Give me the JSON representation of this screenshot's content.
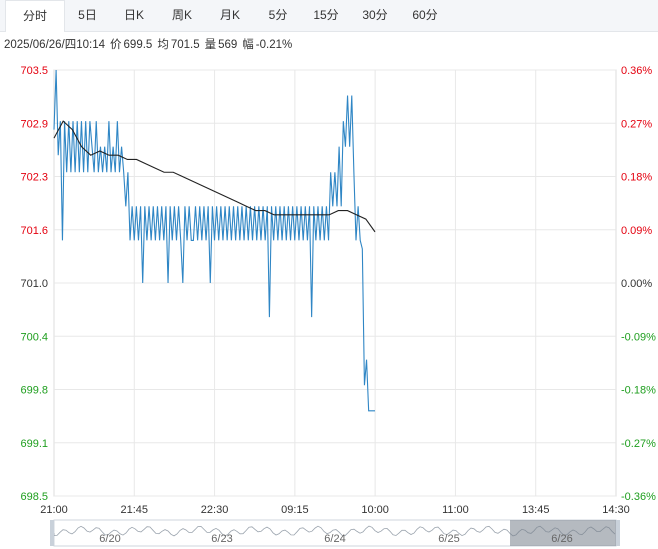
{
  "tabs": [
    {
      "label": "分时",
      "active": true
    },
    {
      "label": "5日",
      "active": false
    },
    {
      "label": "日K",
      "active": false
    },
    {
      "label": "周K",
      "active": false
    },
    {
      "label": "月K",
      "active": false
    },
    {
      "label": "5分",
      "active": false
    },
    {
      "label": "15分",
      "active": false
    },
    {
      "label": "30分",
      "active": false
    },
    {
      "label": "60分",
      "active": false
    }
  ],
  "info": {
    "datetime": "2025/06/26/四10:14",
    "price_label": "价",
    "price": "699.5",
    "avg_label": "均",
    "avg": "701.5",
    "volume_label": "量",
    "volume": "569",
    "change_label": "幅",
    "change": "-0.21%"
  },
  "chart_data": {
    "type": "line",
    "y_ticks": [
      "703.5",
      "702.9",
      "702.3",
      "701.6",
      "701.0",
      "700.4",
      "699.8",
      "699.1",
      "698.5"
    ],
    "y_pct_ticks": [
      "0.36%",
      "0.27%",
      "0.18%",
      "0.09%",
      "0.00%",
      "-0.09%",
      "-0.18%",
      "-0.27%",
      "-0.36%"
    ],
    "ylim": [
      698.5,
      703.5
    ],
    "base": 701.0,
    "x_ticks": [
      "21:00",
      "21:45",
      "22:30",
      "09:15",
      "10:00",
      "11:00",
      "13:45",
      "14:30"
    ],
    "colors": {
      "price": "#2f86c5",
      "avg": "#222222",
      "up": "#e4000f",
      "down": "#1e9e1e",
      "flat": "#333333",
      "grid": "#e8e8e8"
    },
    "series": [
      {
        "values": [
          702.8,
          703.5,
          702.5,
          702.9,
          701.5,
          702.9,
          702.3,
          702.9,
          702.3,
          702.9,
          702.3,
          702.9,
          702.3,
          702.9,
          702.3,
          702.9,
          702.3,
          702.9,
          702.6,
          702.3,
          702.9,
          702.3,
          702.6,
          702.3,
          702.6,
          702.3,
          702.9,
          702.3,
          702.6,
          702.3,
          702.9,
          702.3,
          702.6,
          702.3,
          701.9,
          702.3,
          701.5,
          701.9,
          701.5,
          701.9,
          701.5,
          701.9,
          701.0,
          701.9,
          701.5,
          701.9,
          701.5,
          701.9,
          701.5,
          701.9,
          701.5,
          701.9,
          701.5,
          701.9,
          701.0,
          701.9,
          701.5,
          701.9,
          701.5,
          701.9,
          701.5,
          701.0,
          701.9,
          701.5,
          701.9,
          701.5,
          701.5,
          701.9,
          701.5,
          701.9,
          701.5,
          701.9,
          701.5,
          701.9,
          701.0,
          701.9,
          701.5,
          701.9,
          701.5,
          701.9,
          701.5,
          701.9,
          701.5,
          701.9,
          701.5,
          701.9,
          701.5,
          701.9,
          701.5,
          701.9,
          701.5,
          701.9,
          701.5,
          701.9,
          701.5,
          701.9,
          701.5,
          701.9,
          701.5,
          701.9,
          701.5,
          701.9,
          700.6,
          701.9,
          701.5,
          701.9,
          701.5,
          701.9,
          701.5,
          701.9,
          701.5,
          701.9,
          701.5,
          701.9,
          701.5,
          701.9,
          701.5,
          701.9,
          701.5,
          701.9,
          701.5,
          701.9,
          700.6,
          701.9,
          701.5,
          701.9,
          701.5,
          701.9,
          701.5,
          701.9,
          701.5,
          702.3,
          701.9,
          702.3,
          701.9,
          702.6,
          701.9,
          702.9,
          702.6,
          703.2,
          702.6,
          703.2,
          702.3,
          701.5,
          701.9,
          701.5,
          701.4,
          699.8,
          700.1,
          699.5,
          699.5,
          699.5,
          699.5
        ]
      },
      {
        "values": [
          702.7,
          702.9,
          702.8,
          702.6,
          702.5,
          702.55,
          702.5,
          702.5,
          702.45,
          702.45,
          702.4,
          702.35,
          702.3,
          702.3,
          702.25,
          702.2,
          702.15,
          702.1,
          702.05,
          702.0,
          701.95,
          701.9,
          701.85,
          701.85,
          701.8,
          701.8,
          701.8,
          701.8,
          701.8,
          701.8,
          701.8,
          701.85,
          701.85,
          701.8,
          701.75,
          701.6
        ]
      }
    ]
  },
  "navigator": {
    "dates": [
      "6/20",
      "6/23",
      "6/24",
      "6/25",
      "6/26"
    ]
  }
}
